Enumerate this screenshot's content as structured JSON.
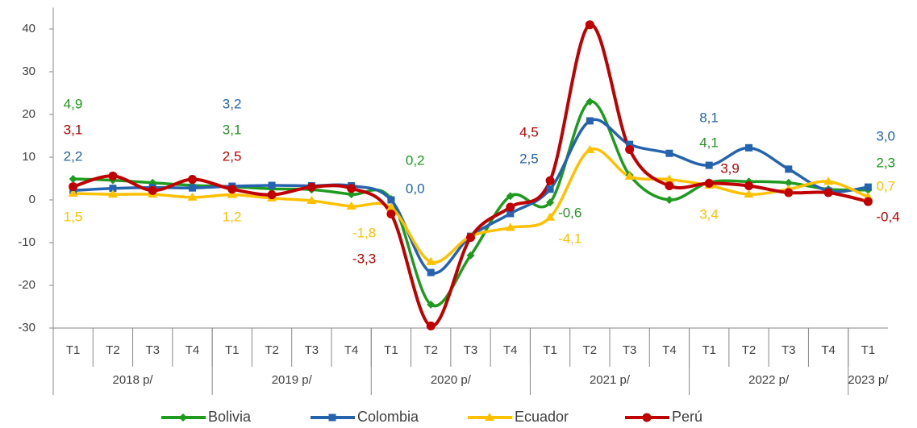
{
  "chart_data": {
    "type": "line",
    "categories": [
      "T1",
      "T2",
      "T3",
      "T4",
      "T1",
      "T2",
      "T3",
      "T4",
      "T1",
      "T2",
      "T3",
      "T4",
      "T1",
      "T2",
      "T3",
      "T4",
      "T1",
      "T2",
      "T3",
      "T4",
      "T1"
    ],
    "year_groups": [
      {
        "label": "2018 p/",
        "count": 4
      },
      {
        "label": "2019 p/",
        "count": 4
      },
      {
        "label": "2020 p/",
        "count": 4
      },
      {
        "label": "2021 p/",
        "count": 4
      },
      {
        "label": "2022 p/",
        "count": 4
      },
      {
        "label": "2023 p/",
        "count": 1
      }
    ],
    "ylim": [
      -30,
      45
    ],
    "yticks": [
      -30,
      -20,
      -10,
      0,
      10,
      20,
      30,
      40
    ],
    "grid": false,
    "legend": "bottom",
    "series": [
      {
        "name": "Bolivia",
        "color": "#1e9a1e",
        "marker": "diamond",
        "values": [
          4.9,
          4.6,
          4.0,
          3.4,
          3.1,
          2.6,
          2.4,
          1.3,
          0.2,
          -24.5,
          -13,
          0.9,
          -0.6,
          23,
          5.8,
          0.0,
          4.1,
          4.3,
          4.0,
          2.5,
          2.3
        ],
        "value_labels": [
          "4,9",
          null,
          null,
          null,
          "3,1",
          null,
          null,
          null,
          "0,2",
          null,
          null,
          null,
          "-0,6",
          null,
          null,
          null,
          "4,1",
          null,
          null,
          null,
          "2,3"
        ]
      },
      {
        "name": "Colombia",
        "color": "#2563ae",
        "marker": "square",
        "values": [
          2.2,
          2.7,
          2.9,
          2.8,
          3.2,
          3.4,
          3.3,
          3.3,
          0.0,
          -17.0,
          -8.5,
          -3.2,
          2.5,
          18.5,
          13,
          10.9,
          8.1,
          12.2,
          7.2,
          2.1,
          3.0
        ],
        "value_labels": [
          "2,2",
          null,
          null,
          null,
          "3,2",
          null,
          null,
          null,
          "0,0",
          null,
          null,
          null,
          "2,5",
          null,
          null,
          null,
          "8,1",
          null,
          null,
          null,
          "3,0"
        ]
      },
      {
        "name": "Ecuador",
        "color": "#ffc000",
        "marker": "triangle",
        "values": [
          1.5,
          1.3,
          1.3,
          0.6,
          1.2,
          0.4,
          -0.2,
          -1.5,
          -1.8,
          -14.5,
          -8.5,
          -6.5,
          -4.1,
          11.7,
          5.5,
          4.8,
          3.4,
          1.3,
          2.5,
          4.3,
          0.7
        ],
        "value_labels": [
          "1,5",
          null,
          null,
          null,
          "1,2",
          null,
          null,
          null,
          "-1,8",
          null,
          null,
          null,
          "-4,1",
          null,
          null,
          null,
          "3,4",
          null,
          null,
          null,
          "0,7"
        ]
      },
      {
        "name": "Perú",
        "color": "#c00000",
        "marker": "circle",
        "values": [
          3.1,
          5.6,
          2.2,
          4.8,
          2.5,
          1.2,
          3.0,
          2.7,
          -3.3,
          -29.5,
          -8.8,
          -1.7,
          4.5,
          41,
          11.8,
          3.3,
          3.9,
          3.3,
          1.7,
          1.7,
          -0.4
        ],
        "value_labels": [
          "3,1",
          null,
          null,
          null,
          "2,5",
          null,
          null,
          null,
          "-3,3",
          null,
          null,
          null,
          "4,5",
          null,
          null,
          null,
          "3,9",
          null,
          null,
          null,
          "-0,4"
        ]
      }
    ]
  }
}
